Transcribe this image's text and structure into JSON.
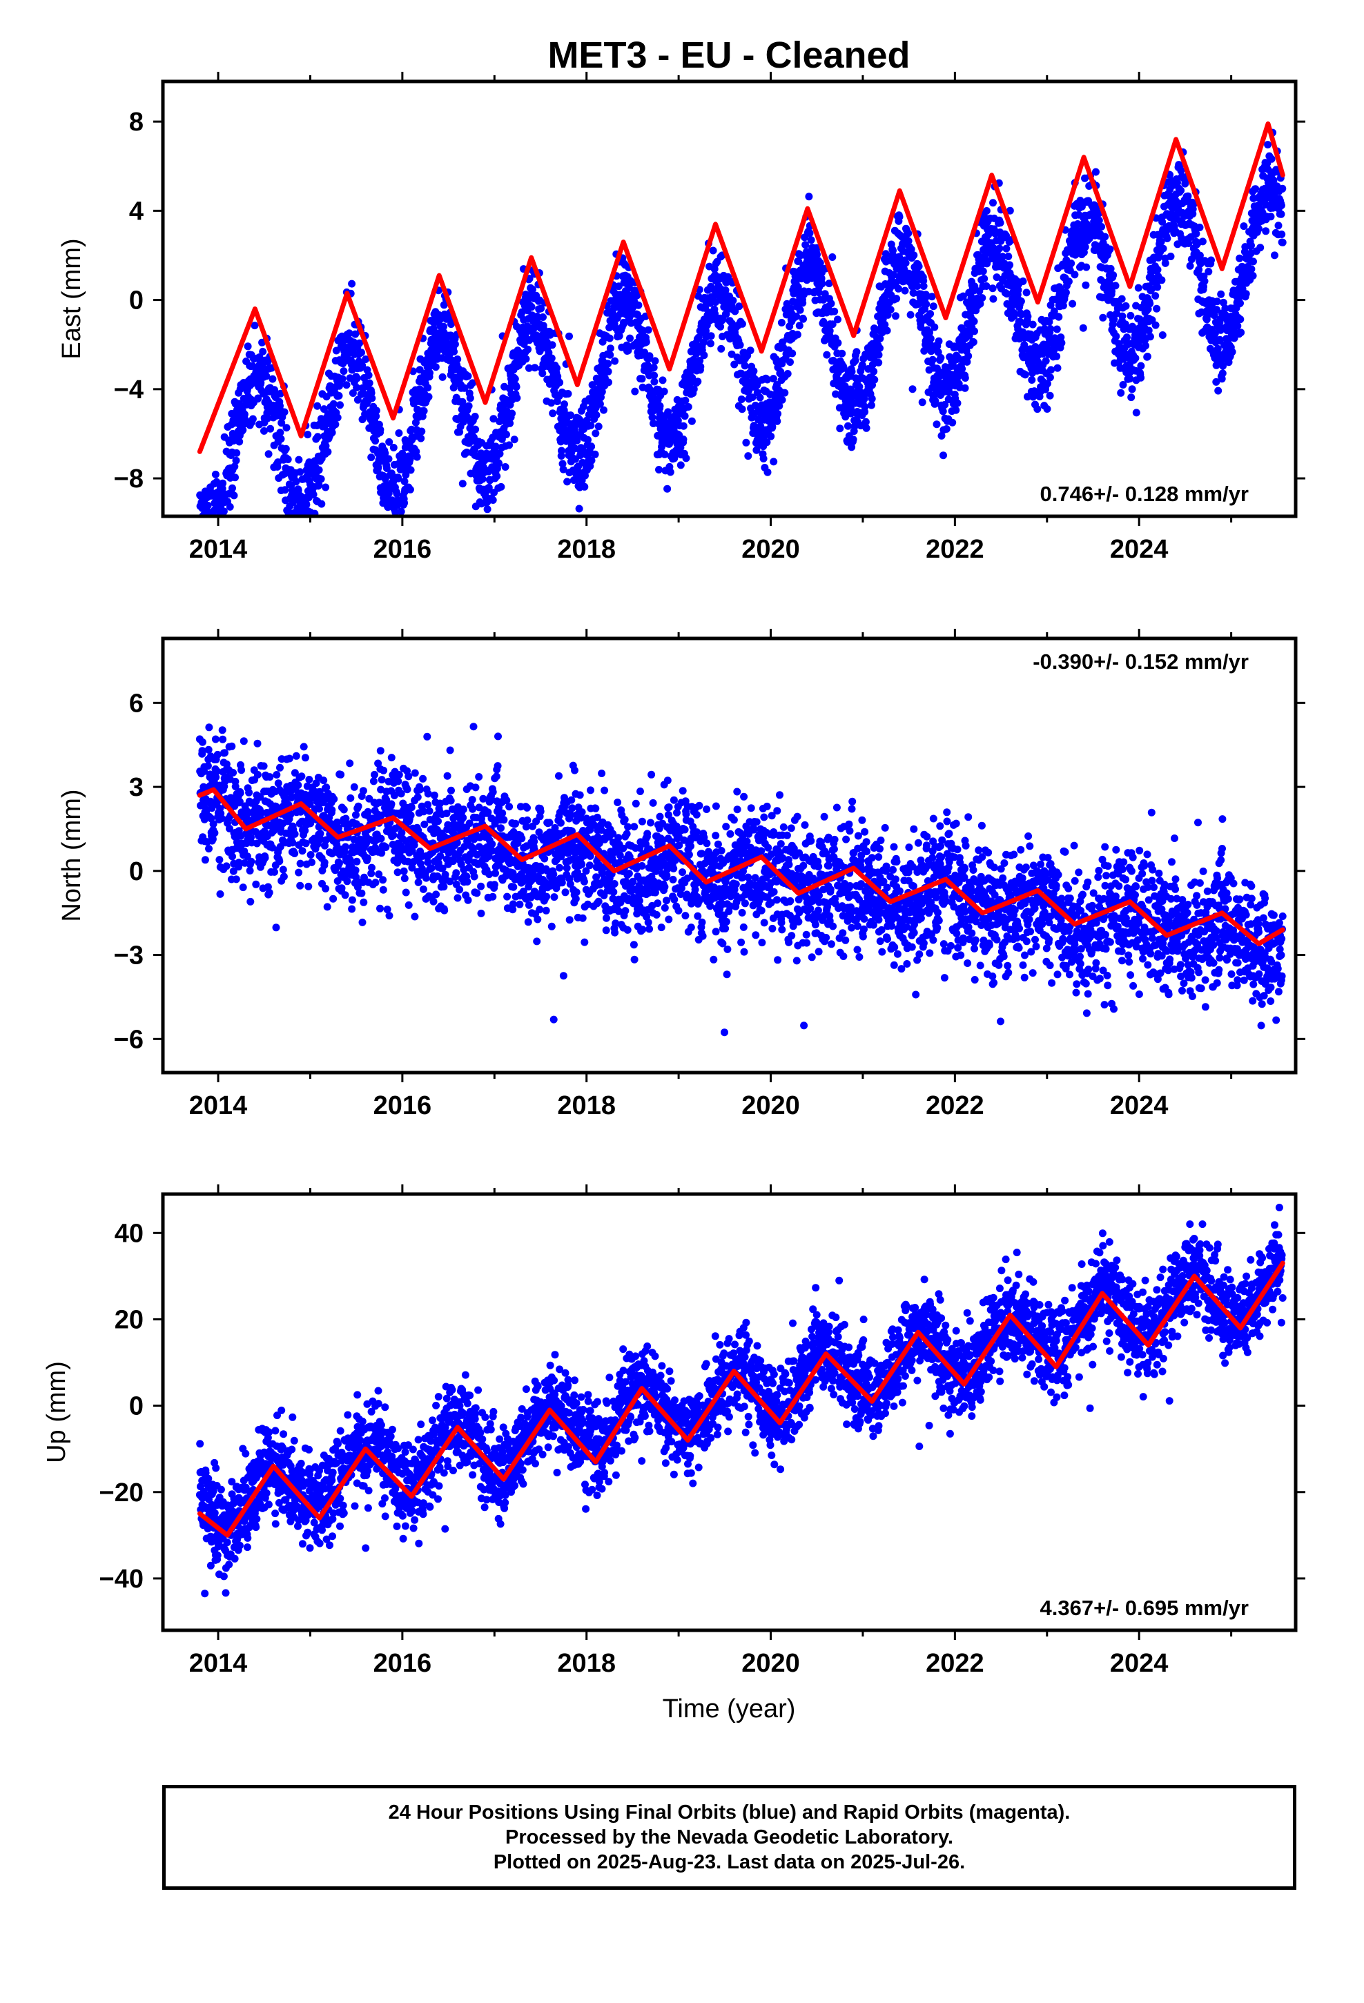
{
  "chart_data": {
    "title": "MET3  - EU - Cleaned",
    "xlabel": "Time (year)",
    "x_ticks": [
      2014,
      2016,
      2018,
      2020,
      2022,
      2024
    ],
    "xlim": [
      2013.4,
      2025.7
    ],
    "colors": {
      "points": "#0000ff",
      "fit": "#ff0000",
      "frame": "#000000"
    },
    "panels": [
      {
        "name": "east",
        "type": "scatter",
        "ylabel": "East (mm)",
        "ylim": [
          -9.7,
          9.8
        ],
        "y_ticks": [
          8,
          4,
          0,
          -4,
          -8
        ],
        "y_tick_labels": [
          "8",
          "4",
          "0",
          "−4",
          "−8"
        ],
        "rate_label": "0.746+/- 0.128 mm/yr",
        "rate_position": "bottom-right",
        "trend_start": {
          "x": 2013.8,
          "y": -6.8
        },
        "trend_rate": 0.746,
        "seasonal_amplitude": 3.2,
        "peak_year_fraction": 0.42,
        "noise": 1.0,
        "fit": [
          {
            "x": 2013.8,
            "y": -6.8
          },
          {
            "x": 2014.4,
            "y": -0.4
          },
          {
            "x": 2014.9,
            "y": -6.1
          },
          {
            "x": 2015.4,
            "y": 0.3
          },
          {
            "x": 2015.9,
            "y": -5.3
          },
          {
            "x": 2016.4,
            "y": 1.1
          },
          {
            "x": 2016.9,
            "y": -4.6
          },
          {
            "x": 2017.4,
            "y": 1.9
          },
          {
            "x": 2017.9,
            "y": -3.8
          },
          {
            "x": 2018.4,
            "y": 2.6
          },
          {
            "x": 2018.9,
            "y": -3.1
          },
          {
            "x": 2019.4,
            "y": 3.4
          },
          {
            "x": 2019.9,
            "y": -2.3
          },
          {
            "x": 2020.4,
            "y": 4.1
          },
          {
            "x": 2020.9,
            "y": -1.6
          },
          {
            "x": 2021.4,
            "y": 4.9
          },
          {
            "x": 2021.9,
            "y": -0.8
          },
          {
            "x": 2022.4,
            "y": 5.6
          },
          {
            "x": 2022.9,
            "y": -0.1
          },
          {
            "x": 2023.4,
            "y": 6.4
          },
          {
            "x": 2023.9,
            "y": 0.6
          },
          {
            "x": 2024.4,
            "y": 7.2
          },
          {
            "x": 2024.9,
            "y": 1.4
          },
          {
            "x": 2025.4,
            "y": 7.9
          },
          {
            "x": 2025.56,
            "y": 5.6
          }
        ]
      },
      {
        "name": "north",
        "type": "scatter",
        "ylabel": "North (mm)",
        "ylim": [
          -7.2,
          8.3
        ],
        "y_ticks": [
          6,
          3,
          0,
          -3,
          -6
        ],
        "y_tick_labels": [
          "6",
          "3",
          "0",
          "−3",
          "−6"
        ],
        "rate_label": "-0.390+/- 0.152 mm/yr",
        "rate_position": "top-right",
        "trend_start": {
          "x": 2013.8,
          "y": 2.1
        },
        "trend_rate": -0.39,
        "seasonal_amplitude": 0.45,
        "peak_year_fraction": 0.92,
        "noise": 1.1,
        "fit": [
          {
            "x": 2013.8,
            "y": 2.7
          },
          {
            "x": 2013.95,
            "y": 2.9
          },
          {
            "x": 2014.3,
            "y": 1.5
          },
          {
            "x": 2014.9,
            "y": 2.4
          },
          {
            "x": 2015.3,
            "y": 1.2
          },
          {
            "x": 2015.9,
            "y": 1.9
          },
          {
            "x": 2016.3,
            "y": 0.8
          },
          {
            "x": 2016.9,
            "y": 1.6
          },
          {
            "x": 2017.3,
            "y": 0.4
          },
          {
            "x": 2017.9,
            "y": 1.3
          },
          {
            "x": 2018.3,
            "y": 0.0
          },
          {
            "x": 2018.9,
            "y": 0.9
          },
          {
            "x": 2019.3,
            "y": -0.4
          },
          {
            "x": 2019.9,
            "y": 0.5
          },
          {
            "x": 2020.3,
            "y": -0.8
          },
          {
            "x": 2020.9,
            "y": 0.1
          },
          {
            "x": 2021.3,
            "y": -1.1
          },
          {
            "x": 2021.9,
            "y": -0.3
          },
          {
            "x": 2022.3,
            "y": -1.5
          },
          {
            "x": 2022.9,
            "y": -0.7
          },
          {
            "x": 2023.3,
            "y": -1.9
          },
          {
            "x": 2023.9,
            "y": -1.1
          },
          {
            "x": 2024.3,
            "y": -2.3
          },
          {
            "x": 2024.9,
            "y": -1.5
          },
          {
            "x": 2025.3,
            "y": -2.6
          },
          {
            "x": 2025.56,
            "y": -2.1
          }
        ]
      },
      {
        "name": "up",
        "type": "scatter",
        "ylabel": "Up (mm)",
        "ylim": [
          -52,
          49
        ],
        "y_ticks": [
          40,
          20,
          0,
          -20,
          -40
        ],
        "y_tick_labels": [
          "40",
          "20",
          "0",
          "−20",
          "−40"
        ],
        "rate_label": "4.367+/- 0.695 mm/yr",
        "rate_position": "bottom-right",
        "trend_start": {
          "x": 2013.8,
          "y": -23
        },
        "trend_rate": 4.367,
        "seasonal_amplitude": 6.0,
        "peak_year_fraction": 0.6,
        "noise": 5.0,
        "fit": [
          {
            "x": 2013.8,
            "y": -25
          },
          {
            "x": 2014.1,
            "y": -30
          },
          {
            "x": 2014.6,
            "y": -14
          },
          {
            "x": 2015.1,
            "y": -26
          },
          {
            "x": 2015.6,
            "y": -10
          },
          {
            "x": 2016.1,
            "y": -21
          },
          {
            "x": 2016.6,
            "y": -5
          },
          {
            "x": 2017.1,
            "y": -17
          },
          {
            "x": 2017.6,
            "y": -1
          },
          {
            "x": 2018.1,
            "y": -13
          },
          {
            "x": 2018.6,
            "y": 4
          },
          {
            "x": 2019.1,
            "y": -8
          },
          {
            "x": 2019.6,
            "y": 8
          },
          {
            "x": 2020.1,
            "y": -4
          },
          {
            "x": 2020.6,
            "y": 12
          },
          {
            "x": 2021.1,
            "y": 1
          },
          {
            "x": 2021.6,
            "y": 17
          },
          {
            "x": 2022.1,
            "y": 5
          },
          {
            "x": 2022.6,
            "y": 21
          },
          {
            "x": 2023.1,
            "y": 9
          },
          {
            "x": 2023.6,
            "y": 26
          },
          {
            "x": 2024.1,
            "y": 14
          },
          {
            "x": 2024.6,
            "y": 30
          },
          {
            "x": 2025.1,
            "y": 18
          },
          {
            "x": 2025.56,
            "y": 33
          }
        ]
      }
    ]
  },
  "footer": {
    "line1": "24 Hour Positions Using Final Orbits (blue) and Rapid Orbits (magenta).",
    "line2": "Processed by the Nevada Geodetic Laboratory.",
    "line3": "Plotted on 2025-Aug-23. Last data on 2025-Jul-26."
  }
}
